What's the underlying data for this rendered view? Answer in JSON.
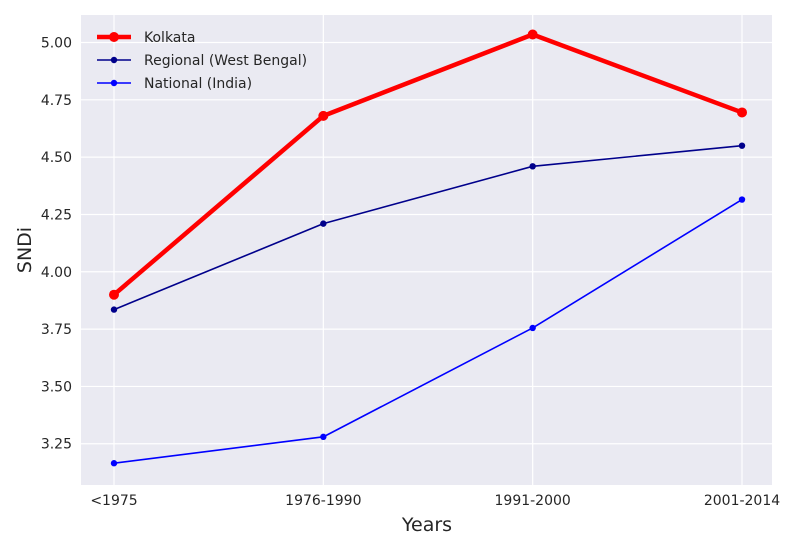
{
  "chart_data": {
    "type": "line",
    "title": "",
    "xlabel": "Years",
    "ylabel": "SNDi",
    "categories": [
      "<1975",
      "1976-1990",
      "1991-2000",
      "2001-2014"
    ],
    "ylim": [
      3.07,
      5.12
    ],
    "yticks": [
      3.25,
      3.5,
      3.75,
      4.0,
      4.25,
      4.5,
      4.75,
      5.0
    ],
    "grid": true,
    "legend_position": "top-left",
    "series": [
      {
        "name": "Kolkata",
        "values": [
          3.9,
          4.68,
          5.035,
          4.695
        ],
        "color": "#ff0000"
      },
      {
        "name": "Regional (West Bengal)",
        "values": [
          3.835,
          4.21,
          4.46,
          4.55
        ],
        "color": "#00008b"
      },
      {
        "name": "National (India)",
        "values": [
          3.165,
          3.28,
          3.755,
          4.315
        ],
        "color": "#0000ff"
      }
    ]
  }
}
